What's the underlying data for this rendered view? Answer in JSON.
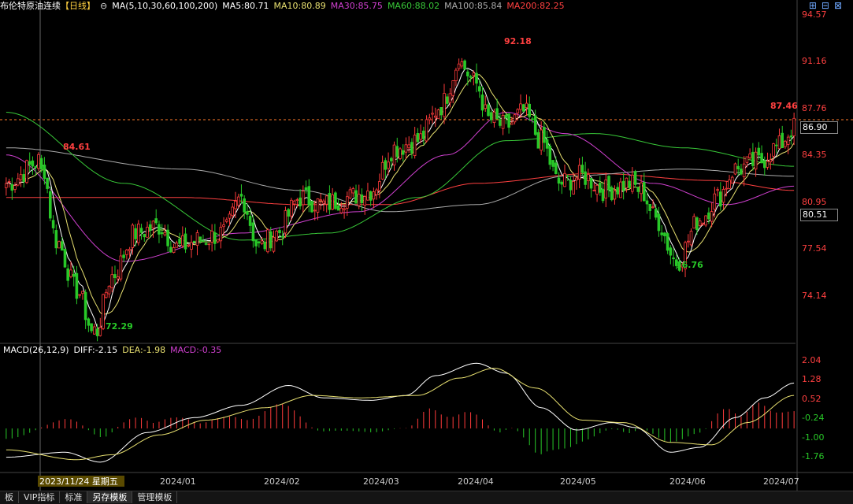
{
  "header": {
    "title": "布伦特原油连续",
    "period": "【日线】",
    "ma_params": "MA(5,10,30,60,100,200)",
    "ma5": "MA5:80.71",
    "ma10": "MA10:80.89",
    "ma30": "MA30:85.75",
    "ma60": "MA60:88.02",
    "ma100": "MA100:85.84",
    "ma200": "MA200:82.25"
  },
  "macd_header": {
    "params": "MACD(26,12,9)",
    "diff": "DIFF:-2.15",
    "dea": "DEA:-1.98",
    "macd": "MACD:-0.35"
  },
  "price_axis": [
    "94.57",
    "91.16",
    "87.76",
    "84.35",
    "80.95",
    "77.54",
    "74.14"
  ],
  "macd_axis": [
    "2.04",
    "1.28",
    "0.52",
    "-0.24",
    "-1.00",
    "-1.76"
  ],
  "current_price": "86.90",
  "cursor_price": "80.51",
  "annotations": [
    "84.61",
    "72.29",
    "92.18",
    "76.76",
    "87.46"
  ],
  "date_axis": [
    "2023/11/24 星期五",
    "2024/01",
    "2024/02",
    "2024/03",
    "2024/04",
    "2024/05",
    "2024/06",
    "2024/07"
  ],
  "tabs": [
    "板",
    "VIP指标",
    "标准",
    "另存模板",
    "管理模板"
  ],
  "colors": {
    "up": "#ff3b3b",
    "down": "#28c828",
    "ma5": "#ffffff",
    "ma10": "#e8e070",
    "ma30": "#d040d0",
    "ma60": "#38c838",
    "ma100": "#aaaaaa",
    "ma200": "#ff4040"
  },
  "chart_data": {
    "type": "candlestick",
    "ylim": [
      72.29,
      94.57
    ],
    "macd_ylim": [
      -2.1,
      2.2
    ],
    "anchors": [
      [
        0,
        83.0
      ],
      [
        12,
        84.6
      ],
      [
        17,
        79.0
      ],
      [
        24,
        75.5
      ],
      [
        30,
        72.3
      ],
      [
        36,
        76.5
      ],
      [
        44,
        79.5
      ],
      [
        52,
        80.0
      ],
      [
        58,
        78.5
      ],
      [
        66,
        79.0
      ],
      [
        74,
        79.5
      ],
      [
        80,
        82.0
      ],
      [
        86,
        78.5
      ],
      [
        92,
        79.5
      ],
      [
        100,
        82.0
      ],
      [
        108,
        81.5
      ],
      [
        116,
        82.0
      ],
      [
        124,
        82.5
      ],
      [
        132,
        85.5
      ],
      [
        140,
        86.0
      ],
      [
        148,
        88.5
      ],
      [
        154,
        91.5
      ],
      [
        160,
        90.0
      ],
      [
        164,
        87.5
      ],
      [
        170,
        87.0
      ],
      [
        176,
        88.0
      ],
      [
        182,
        86.0
      ],
      [
        188,
        83.0
      ],
      [
        196,
        83.5
      ],
      [
        204,
        82.5
      ],
      [
        212,
        83.0
      ],
      [
        216,
        82.5
      ],
      [
        221,
        80.5
      ],
      [
        228,
        77.5
      ],
      [
        236,
        80.5
      ],
      [
        242,
        82.0
      ],
      [
        248,
        84.0
      ],
      [
        256,
        84.5
      ],
      [
        262,
        85.5
      ],
      [
        268,
        86.9
      ]
    ],
    "ma_levels": {
      "ma30": [
        [
          0,
          85.0
        ],
        [
          40,
          77.5
        ],
        [
          80,
          79.5
        ],
        [
          120,
          81.0
        ],
        [
          150,
          85.0
        ],
        [
          170,
          88.0
        ],
        [
          190,
          86.5
        ],
        [
          220,
          83.0
        ],
        [
          245,
          81.5
        ],
        [
          268,
          82.8
        ]
      ],
      "ma60": [
        [
          0,
          88.0
        ],
        [
          40,
          83.0
        ],
        [
          80,
          79.0
        ],
        [
          110,
          79.5
        ],
        [
          140,
          82.0
        ],
        [
          170,
          86.0
        ],
        [
          200,
          86.5
        ],
        [
          230,
          85.5
        ],
        [
          268,
          84.2
        ]
      ],
      "ma100": [
        [
          0,
          85.5
        ],
        [
          60,
          84.0
        ],
        [
          100,
          82.5
        ],
        [
          130,
          81.0
        ],
        [
          160,
          81.5
        ],
        [
          190,
          83.5
        ],
        [
          230,
          84.0
        ],
        [
          268,
          83.5
        ]
      ],
      "ma200": [
        [
          0,
          82.0
        ],
        [
          60,
          82.0
        ],
        [
          100,
          81.5
        ],
        [
          130,
          81.5
        ],
        [
          160,
          83.0
        ],
        [
          200,
          83.7
        ],
        [
          240,
          83.2
        ],
        [
          268,
          82.5
        ]
      ]
    },
    "bar_count": 269,
    "macd_diff": [
      [
        0,
        -1.8
      ],
      [
        20,
        -1.6
      ],
      [
        32,
        -2.0
      ],
      [
        48,
        -0.8
      ],
      [
        64,
        -0.2
      ],
      [
        80,
        0.3
      ],
      [
        96,
        1.1
      ],
      [
        108,
        0.6
      ],
      [
        124,
        0.5
      ],
      [
        136,
        0.7
      ],
      [
        146,
        1.5
      ],
      [
        160,
        2.0
      ],
      [
        170,
        1.6
      ],
      [
        182,
        0.2
      ],
      [
        194,
        -0.7
      ],
      [
        206,
        -0.4
      ],
      [
        214,
        -0.6
      ],
      [
        226,
        -1.6
      ],
      [
        236,
        -1.4
      ],
      [
        248,
        -0.2
      ],
      [
        258,
        0.6
      ],
      [
        268,
        1.2
      ]
    ],
    "macd_dea": [
      [
        0,
        -1.5
      ],
      [
        24,
        -1.9
      ],
      [
        36,
        -1.7
      ],
      [
        52,
        -0.9
      ],
      [
        68,
        -0.3
      ],
      [
        88,
        0.2
      ],
      [
        104,
        0.7
      ],
      [
        120,
        0.6
      ],
      [
        140,
        0.7
      ],
      [
        154,
        1.4
      ],
      [
        166,
        1.8
      ],
      [
        180,
        1.0
      ],
      [
        196,
        -0.3
      ],
      [
        210,
        -0.4
      ],
      [
        226,
        -1.2
      ],
      [
        240,
        -1.3
      ],
      [
        252,
        -0.4
      ],
      [
        268,
        0.7
      ]
    ]
  }
}
